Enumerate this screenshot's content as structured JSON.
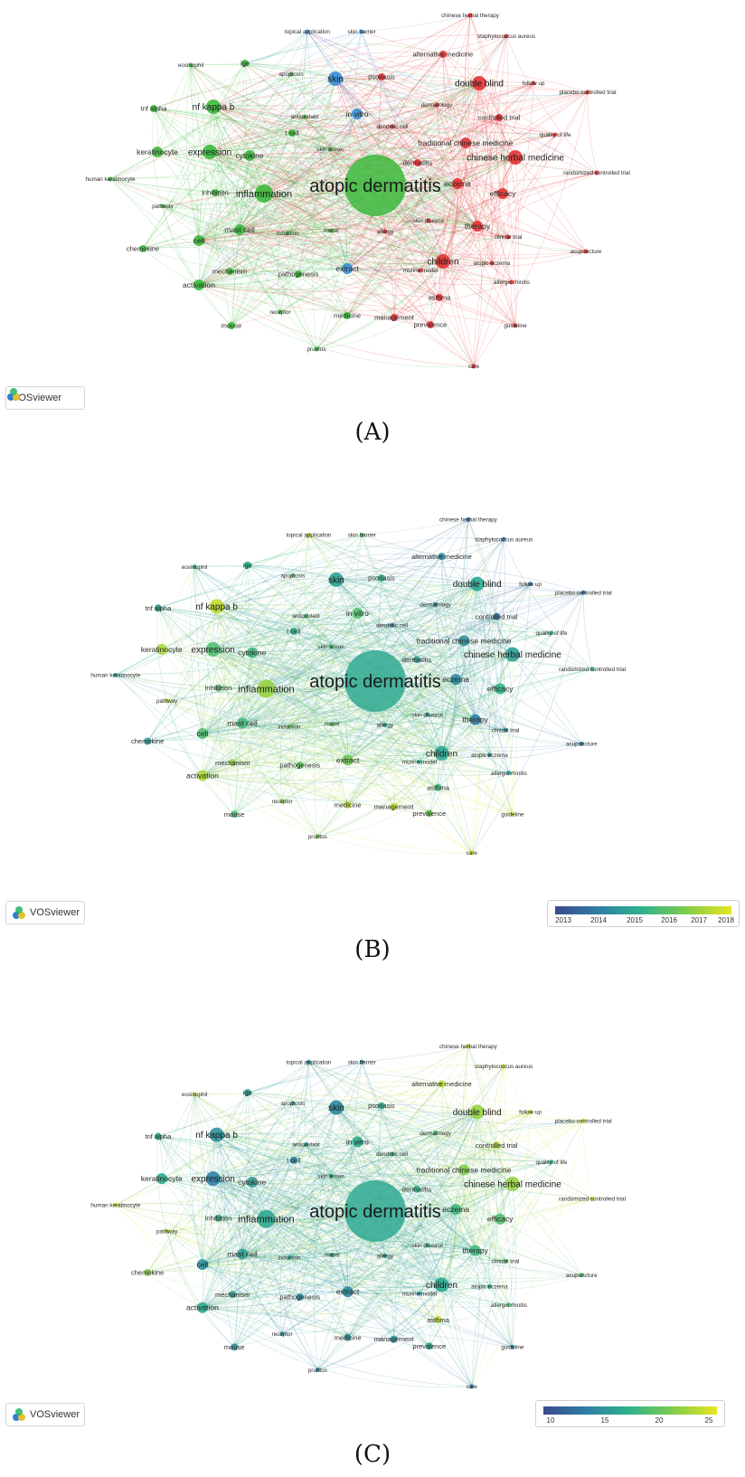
{
  "brand_label": "VOSviewer",
  "captions": [
    "(A)",
    "(B)",
    "(C)"
  ],
  "legends": {
    "B": {
      "ticks": [
        "2013",
        "2014",
        "2015",
        "2016",
        "2017",
        "2018"
      ]
    },
    "C": {
      "ticks": [
        "10",
        "15",
        "20",
        "25"
      ]
    }
  },
  "cluster_colors": {
    "green": "#3cb93c",
    "red": "#e63232",
    "blue": "#3a8ed6"
  },
  "nodes": [
    {
      "label": "atopic dermatitis",
      "cluster": "green",
      "s": 9,
      "B": 0.45,
      "C": 0.45
    },
    {
      "label": "double blind",
      "cluster": "red",
      "s": 4,
      "B": 0.45,
      "C": 0.8
    },
    {
      "label": "chinese herbal therapy",
      "cluster": "red",
      "s": 1,
      "B": 0.15,
      "C": 0.85
    },
    {
      "label": "staphylococcus aureus",
      "cluster": "red",
      "s": 1,
      "B": 0.2,
      "C": 0.9
    },
    {
      "label": "alternative medicine",
      "cluster": "red",
      "s": 2,
      "B": 0.3,
      "C": 0.85
    },
    {
      "label": "follow up",
      "cluster": "red",
      "s": 1,
      "B": 0.2,
      "C": 0.9
    },
    {
      "label": "placebo controlled trial",
      "cluster": "red",
      "s": 1,
      "B": 0.15,
      "C": 0.95
    },
    {
      "label": "controlled trial",
      "cluster": "red",
      "s": 2,
      "B": 0.2,
      "C": 0.85
    },
    {
      "label": "quality of life",
      "cluster": "red",
      "s": 1,
      "B": 0.5,
      "C": 0.5
    },
    {
      "label": "traditional chinese medicine",
      "cluster": "red",
      "s": 3,
      "B": 0.35,
      "C": 0.75
    },
    {
      "label": "chinese herbal medicine",
      "cluster": "red",
      "s": 4,
      "B": 0.4,
      "C": 0.8
    },
    {
      "label": "randomized controlled trial",
      "cluster": "red",
      "s": 1,
      "B": 0.55,
      "C": 0.9
    },
    {
      "label": "dermatitis",
      "cluster": "red",
      "s": 2,
      "B": 0.4,
      "C": 0.5
    },
    {
      "label": "eczema",
      "cluster": "red",
      "s": 3,
      "B": 0.3,
      "C": 0.55
    },
    {
      "label": "efficacy",
      "cluster": "red",
      "s": 3,
      "B": 0.5,
      "C": 0.6
    },
    {
      "label": "therapy",
      "cluster": "red",
      "s": 3,
      "B": 0.25,
      "C": 0.55
    },
    {
      "label": "clinical trial",
      "cluster": "red",
      "s": 1,
      "B": 0.3,
      "C": 0.6
    },
    {
      "label": "acupuncture",
      "cluster": "red",
      "s": 1,
      "B": 0.25,
      "C": 0.6
    },
    {
      "label": "atopic eczema",
      "cluster": "red",
      "s": 1,
      "B": 0.35,
      "C": 0.5
    },
    {
      "label": "children",
      "cluster": "red",
      "s": 4,
      "B": 0.45,
      "C": 0.45
    },
    {
      "label": "allergic rhinitis",
      "cluster": "red",
      "s": 1,
      "B": 0.4,
      "C": 0.6
    },
    {
      "label": "asthma",
      "cluster": "red",
      "s": 2,
      "B": 0.55,
      "C": 0.9
    },
    {
      "label": "guideline",
      "cluster": "red",
      "s": 1,
      "B": 0.95,
      "C": 0.3
    },
    {
      "label": "prevalence",
      "cluster": "red",
      "s": 2,
      "B": 0.7,
      "C": 0.45
    },
    {
      "label": "management",
      "cluster": "red",
      "s": 2,
      "B": 0.9,
      "C": 0.35
    },
    {
      "label": "care",
      "cluster": "red",
      "s": 1,
      "B": 0.95,
      "C": 0.25
    },
    {
      "label": "dermatology",
      "cluster": "red",
      "s": 1,
      "B": 0.3,
      "C": 0.6
    },
    {
      "label": "dendritic cell",
      "cluster": "red",
      "s": 1,
      "B": 0.3,
      "C": 0.4
    },
    {
      "label": "skin disease",
      "cluster": "red",
      "s": 1,
      "B": 0.4,
      "C": 0.5
    },
    {
      "label": "allergy",
      "cluster": "red",
      "s": 1,
      "B": 0.45,
      "C": 0.35
    },
    {
      "label": "murine model",
      "cluster": "red",
      "s": 1,
      "B": 0.5,
      "C": 0.35
    },
    {
      "label": "psoriasis",
      "cluster": "red",
      "s": 2,
      "B": 0.5,
      "C": 0.5
    },
    {
      "label": "topical application",
      "cluster": "blue",
      "s": 1,
      "B": 0.85,
      "C": 0.3
    },
    {
      "label": "skin barrier",
      "cluster": "blue",
      "s": 1,
      "B": 0.6,
      "C": 0.3
    },
    {
      "label": "skin",
      "cluster": "blue",
      "s": 4,
      "B": 0.4,
      "C": 0.3
    },
    {
      "label": "in vitro",
      "cluster": "blue",
      "s": 3,
      "B": 0.6,
      "C": 0.45
    },
    {
      "label": "extract",
      "cluster": "blue",
      "s": 3,
      "B": 0.7,
      "C": 0.3
    },
    {
      "label": "eosinophil",
      "cluster": "green",
      "s": 1,
      "B": 0.4,
      "C": 0.85
    },
    {
      "label": "ige",
      "cluster": "green",
      "s": 2,
      "B": 0.5,
      "C": 0.4
    },
    {
      "label": "apoptosis",
      "cluster": "green",
      "s": 1,
      "B": 0.65,
      "C": 0.4
    },
    {
      "label": "tnf alpha",
      "cluster": "green",
      "s": 2,
      "B": 0.4,
      "C": 0.45
    },
    {
      "label": "nf kappa b",
      "cluster": "green",
      "s": 4,
      "B": 0.9,
      "C": 0.35
    },
    {
      "label": "antioxidant",
      "cluster": "green",
      "s": 1,
      "B": 0.6,
      "C": 0.4
    },
    {
      "label": "keratinocyte",
      "cluster": "green",
      "s": 3,
      "B": 0.85,
      "C": 0.45
    },
    {
      "label": "expression",
      "cluster": "green",
      "s": 4,
      "B": 0.6,
      "C": 0.25
    },
    {
      "label": "cytokine",
      "cluster": "green",
      "s": 3,
      "B": 0.55,
      "C": 0.4
    },
    {
      "label": "t cell",
      "cluster": "green",
      "s": 2,
      "B": 0.5,
      "C": 0.3
    },
    {
      "label": "skin lesion",
      "cluster": "green",
      "s": 1,
      "B": 0.6,
      "C": 0.4
    },
    {
      "label": "human keratinocyte",
      "cluster": "green",
      "s": 1,
      "B": 0.4,
      "C": 0.95
    },
    {
      "label": "pathway",
      "cluster": "green",
      "s": 1,
      "B": 0.9,
      "C": 0.85
    },
    {
      "label": "inhibition",
      "cluster": "green",
      "s": 2,
      "B": 0.6,
      "C": 0.45
    },
    {
      "label": "inflammation",
      "cluster": "green",
      "s": 5,
      "B": 0.8,
      "C": 0.45
    },
    {
      "label": "chemokine",
      "cluster": "green",
      "s": 2,
      "B": 0.4,
      "C": 0.75
    },
    {
      "label": "cell",
      "cluster": "green",
      "s": 3,
      "B": 0.6,
      "C": 0.35
    },
    {
      "label": "mast cell",
      "cluster": "green",
      "s": 3,
      "B": 0.55,
      "C": 0.4
    },
    {
      "label": "induction",
      "cluster": "green",
      "s": 1,
      "B": 0.7,
      "C": 0.45
    },
    {
      "label": "model",
      "cluster": "green",
      "s": 1,
      "B": 0.65,
      "C": 0.4
    },
    {
      "label": "mechanism",
      "cluster": "green",
      "s": 2,
      "B": 0.8,
      "C": 0.4
    },
    {
      "label": "pathogenesis",
      "cluster": "green",
      "s": 2,
      "B": 0.65,
      "C": 0.3
    },
    {
      "label": "activation",
      "cluster": "green",
      "s": 3,
      "B": 0.85,
      "C": 0.45
    },
    {
      "label": "receptor",
      "cluster": "green",
      "s": 1,
      "B": 0.75,
      "C": 0.3
    },
    {
      "label": "medicine",
      "cluster": "green",
      "s": 2,
      "B": 0.9,
      "C": 0.35
    },
    {
      "label": "mouse",
      "cluster": "green",
      "s": 2,
      "B": 0.6,
      "C": 0.35
    },
    {
      "label": "pruritus",
      "cluster": "green",
      "s": 1,
      "B": 0.7,
      "C": 0.3
    }
  ]
}
